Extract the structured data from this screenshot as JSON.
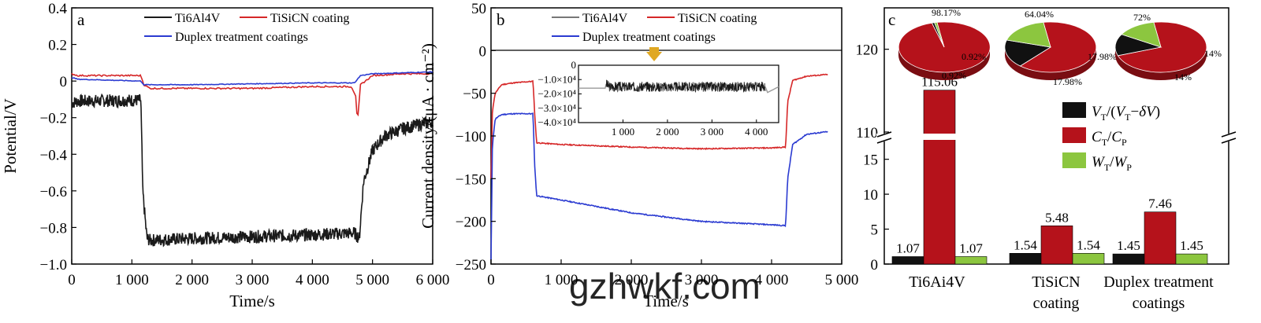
{
  "colors": {
    "ti6al4v": "#1a1a1a",
    "tisicn": "#d62728",
    "duplex": "#2b3bd1",
    "bar_black": "#111111",
    "bar_red": "#b5121b",
    "bar_green": "#8cc63f",
    "inset_gray": "#9a9a9a",
    "arrow": "#e0a822"
  },
  "chart_data": [
    {
      "id": "a",
      "type": "line",
      "panel_label": "a",
      "xlabel": "Time/s",
      "ylabel": "Potential/V",
      "xlim": [
        0,
        6000
      ],
      "ylim": [
        -1.0,
        0.4
      ],
      "xticks": [
        "0",
        "1 000",
        "2 000",
        "3 000",
        "4 000",
        "5 000",
        "6 000"
      ],
      "yticks": [
        "0.4",
        "0.2",
        "0",
        "−0.2",
        "−0.4",
        "−0.6",
        "−0.8",
        "−1.0"
      ],
      "legend": [
        "Ti6Al4V",
        "TiSiCN coating",
        "Duplex treatment coatings"
      ],
      "series": [
        {
          "name": "Ti6Al4V",
          "color_key": "ti6al4v",
          "noise": 0.035,
          "x": [
            0,
            100,
            1000,
            1150,
            1180,
            1250,
            1300,
            2000,
            3000,
            4000,
            4700,
            4780,
            4850,
            5000,
            5200,
            5500,
            6000
          ],
          "y": [
            -0.12,
            -0.11,
            -0.105,
            -0.105,
            -0.6,
            -0.86,
            -0.87,
            -0.86,
            -0.85,
            -0.84,
            -0.83,
            -0.86,
            -0.55,
            -0.38,
            -0.3,
            -0.26,
            -0.22
          ]
        },
        {
          "name": "TiSiCN coating",
          "color_key": "tisicn",
          "noise": 0.004,
          "x": [
            0,
            100,
            1150,
            1200,
            1300,
            2000,
            3000,
            4000,
            4650,
            4720,
            4750,
            4800,
            5000,
            5500,
            6000
          ],
          "y": [
            0.04,
            0.03,
            0.03,
            -0.02,
            -0.04,
            -0.04,
            -0.04,
            -0.03,
            -0.03,
            -0.08,
            -0.23,
            -0.02,
            0.03,
            0.04,
            0.04
          ]
        },
        {
          "name": "Duplex treatment coatings",
          "color_key": "duplex",
          "noise": 0.002,
          "x": [
            0,
            100,
            1150,
            1200,
            2000,
            3000,
            4000,
            4700,
            4800,
            5000,
            6000
          ],
          "y": [
            0.02,
            0.01,
            0.0,
            -0.02,
            -0.02,
            -0.015,
            -0.01,
            -0.01,
            0.03,
            0.04,
            0.05
          ]
        }
      ]
    },
    {
      "id": "b",
      "type": "line",
      "panel_label": "b",
      "xlabel": "Time/s",
      "ylabel": "Current density/(μA · cm⁻²)",
      "xlim": [
        0,
        5000
      ],
      "ylim": [
        -250,
        50
      ],
      "xticks": [
        "0",
        "1 000",
        "2 000",
        "3 000",
        "4 000",
        "5 000"
      ],
      "yticks": [
        "50",
        "0",
        "−50",
        "−100",
        "−150",
        "−200",
        "−250"
      ],
      "legend": [
        "Ti6Al4V",
        "TiSiCN coating",
        "Duplex treatment coatings"
      ],
      "series": [
        {
          "name": "TiSiCN coating",
          "color_key": "tisicn",
          "x": [
            0,
            20,
            60,
            150,
            300,
            600,
            620,
            650,
            1000,
            2000,
            3000,
            4000,
            4200,
            4230,
            4300,
            4500,
            4800
          ],
          "y": [
            -150,
            -70,
            -50,
            -40,
            -38,
            -36,
            -70,
            -108,
            -110,
            -113,
            -115,
            -114,
            -113,
            -60,
            -35,
            -30,
            -28
          ]
        },
        {
          "name": "Duplex treatment coatings",
          "color_key": "duplex",
          "x": [
            0,
            20,
            60,
            150,
            300,
            600,
            620,
            650,
            1000,
            2000,
            3000,
            4000,
            4200,
            4230,
            4300,
            4500,
            4800
          ],
          "y": [
            -245,
            -110,
            -80,
            -75,
            -74,
            -74,
            -130,
            -170,
            -175,
            -190,
            -200,
            -204,
            -205,
            -150,
            -110,
            -98,
            -95
          ]
        }
      ],
      "inset": {
        "xlim": [
          0,
          4500
        ],
        "ylim": [
          -40000,
          0
        ],
        "xticks": [
          "1 000",
          "2 000",
          "3 000",
          "4 000"
        ],
        "yticks": [
          "0",
          "−1.0×10⁴",
          "−2.0×10⁴",
          "−3.0×10⁴",
          "−4.0×10⁴"
        ],
        "series": [
          {
            "name": "Ti6Al4V",
            "color_key": "ti6al4v",
            "noise": 3500,
            "x": [
              0,
              600,
              620,
              700,
              4200,
              4250,
              4500
            ],
            "y": [
              -16000,
              -16000,
              -13000,
              -15000,
              -15000,
              -19000,
              -15000
            ]
          }
        ]
      }
    },
    {
      "id": "c",
      "type": "bar",
      "panel_label": "c",
      "categories": [
        "Ti6Ai4V",
        "TiSiCN coating",
        "Duplex treatment coatings"
      ],
      "series_legend": [
        "V",
        "C",
        "W"
      ],
      "series": [
        {
          "name": "VT/(VT−δV)",
          "color_key": "bar_black",
          "values": [
            1.07,
            1.54,
            1.45
          ],
          "labels": [
            "1.07",
            "1.54",
            "1.45"
          ]
        },
        {
          "name": "CT/CP",
          "color_key": "bar_red",
          "values": [
            115.06,
            5.48,
            7.46
          ],
          "labels": [
            "115.06",
            "5.48",
            "7.46"
          ]
        },
        {
          "name": "WT/WP",
          "color_key": "bar_green",
          "values": [
            1.07,
            1.54,
            1.45
          ],
          "labels": [
            "1.07",
            "1.54",
            "1.45"
          ]
        }
      ],
      "lower_yticks": [
        "0",
        "5",
        "10",
        "15"
      ],
      "upper_yticks": [
        "110",
        "120"
      ],
      "axis_break": [
        18,
        110
      ],
      "pies": [
        {
          "label": "Ti6Ai4V",
          "values": [
            98.17,
            0.92,
            0.92
          ],
          "labels": [
            "98.17%",
            "0.92%",
            "0.92%"
          ]
        },
        {
          "label": "TiSiCN coating",
          "values": [
            64.04,
            17.98,
            17.98
          ],
          "labels": [
            "64.04%",
            "17.98%",
            "17.98%"
          ]
        },
        {
          "label": "Duplex treatment coatings",
          "values": [
            72,
            14,
            14
          ],
          "labels": [
            "72%",
            "14%",
            "14%"
          ]
        }
      ]
    }
  ],
  "cat_labels": {
    "c1": "Ti6Ai4V",
    "c2a": "TiSiCN",
    "c2b": "coating",
    "c3a": "Duplex treatment",
    "c3b": "coatings"
  },
  "watermark": "gzhwkf.com"
}
